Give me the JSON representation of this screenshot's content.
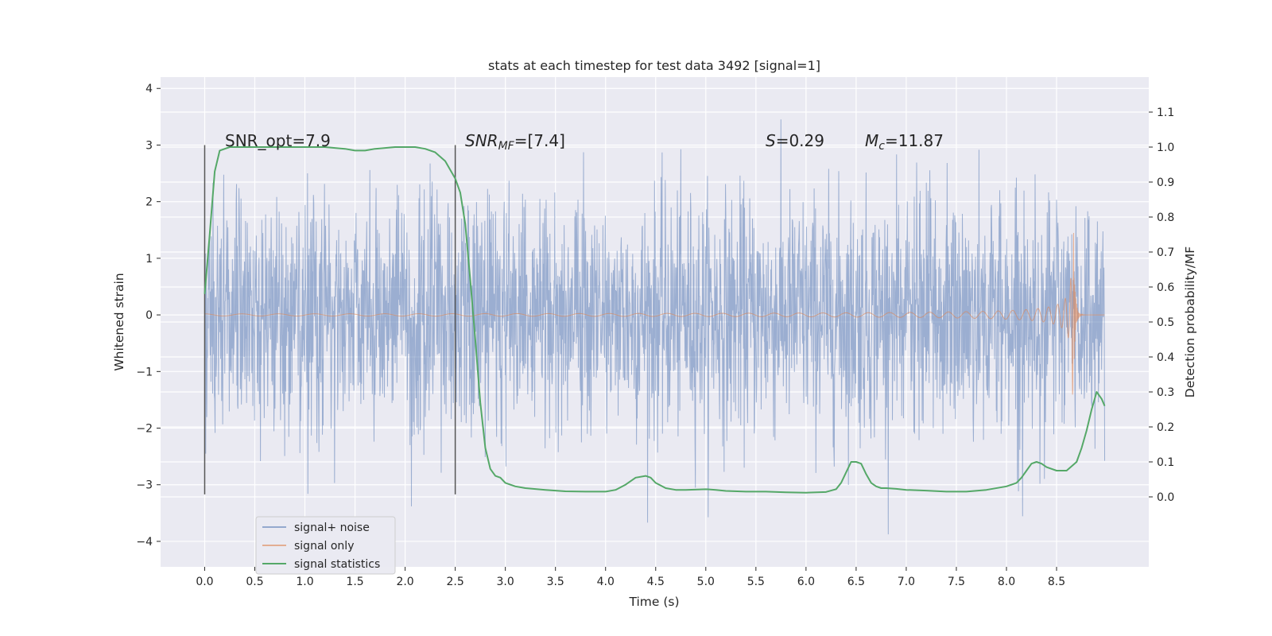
{
  "chart_data": {
    "type": "line",
    "title": "stats at each timestep for test data 3492 [signal=1]",
    "xlabel": "Time (s)",
    "ylabel_left": "Whitened strain",
    "ylabel_right": "Detection probability/MF",
    "xlim": [
      -0.44,
      9.42
    ],
    "ylim_left": [
      -4.45,
      4.2
    ],
    "ylim_right": [
      -0.2,
      1.2
    ],
    "x_ticks": [
      "0.0",
      "0.5",
      "1.0",
      "1.5",
      "2.0",
      "2.5",
      "3.0",
      "3.5",
      "4.0",
      "4.5",
      "5.0",
      "5.5",
      "6.0",
      "6.5",
      "7.0",
      "7.5",
      "8.0",
      "8.5"
    ],
    "y_ticks_left": [
      "4",
      "3",
      "2",
      "1",
      "0",
      "−1",
      "−2",
      "−3",
      "−4"
    ],
    "y_ticks_right": [
      "1.1",
      "1.0",
      "0.9",
      "0.8",
      "0.7",
      "0.6",
      "0.5",
      "0.4",
      "0.3",
      "0.2",
      "0.1",
      "0.0"
    ],
    "grid": true,
    "legend_position": "lower-left",
    "annotations": {
      "snr_opt": "SNR_opt=7.9",
      "snr_mf_prefix": "SNR",
      "snr_mf_sub": "MF",
      "snr_mf_rest": "=[7.4]",
      "s_prefix": "S",
      "s_rest": "=0.29",
      "mc_prefix": "M",
      "mc_sub": "c",
      "mc_rest": "=11.87"
    },
    "vertical_markers": [
      {
        "x": 0.0,
        "y_range": [
          -3.17,
          3.0
        ]
      },
      {
        "x": 2.5,
        "y_range": [
          -3.17,
          3.0
        ]
      }
    ],
    "series": [
      {
        "name": "signal+ noise",
        "color": "#4c72b0",
        "kind": "noise",
        "x_range": [
          0.0,
          8.98
        ],
        "typical_amplitude": 1.7,
        "max": 3.7,
        "min": -4.0
      },
      {
        "name": "signal only",
        "color": "#dd8452",
        "kind": "chirp",
        "x_range": [
          0.0,
          8.98
        ],
        "merger_time": 8.67,
        "peak_amplitude": 1.5
      },
      {
        "name": "signal statistics",
        "color": "#55a868",
        "axis": "right",
        "x": [
          0.0,
          0.05,
          0.1,
          0.15,
          0.25,
          0.4,
          0.6,
          0.8,
          1.0,
          1.2,
          1.4,
          1.5,
          1.55,
          1.6,
          1.7,
          1.9,
          2.1,
          2.2,
          2.3,
          2.4,
          2.5,
          2.55,
          2.6,
          2.65,
          2.7,
          2.75,
          2.8,
          2.85,
          2.9,
          2.95,
          3.0,
          3.1,
          3.2,
          3.4,
          3.6,
          3.8,
          4.0,
          4.1,
          4.2,
          4.3,
          4.4,
          4.45,
          4.5,
          4.6,
          4.7,
          4.8,
          5.0,
          5.1,
          5.2,
          5.4,
          5.6,
          5.8,
          6.0,
          6.2,
          6.3,
          6.35,
          6.4,
          6.45,
          6.5,
          6.55,
          6.6,
          6.65,
          6.7,
          6.75,
          6.8,
          6.9,
          7.0,
          7.2,
          7.4,
          7.6,
          7.8,
          8.0,
          8.1,
          8.15,
          8.2,
          8.25,
          8.3,
          8.35,
          8.4,
          8.5,
          8.6,
          8.7,
          8.75,
          8.8,
          8.85,
          8.9,
          8.95,
          8.98
        ],
        "y": [
          0.58,
          0.75,
          0.93,
          0.99,
          1.0,
          1.0,
          1.0,
          1.0,
          1.0,
          1.0,
          0.995,
          0.99,
          0.99,
          0.99,
          0.995,
          1.0,
          1.0,
          0.995,
          0.985,
          0.96,
          0.91,
          0.87,
          0.78,
          0.62,
          0.45,
          0.27,
          0.14,
          0.08,
          0.06,
          0.055,
          0.04,
          0.03,
          0.025,
          0.02,
          0.016,
          0.015,
          0.015,
          0.02,
          0.035,
          0.055,
          0.06,
          0.055,
          0.04,
          0.025,
          0.02,
          0.02,
          0.022,
          0.02,
          0.017,
          0.015,
          0.015,
          0.013,
          0.012,
          0.014,
          0.022,
          0.04,
          0.07,
          0.1,
          0.1,
          0.095,
          0.065,
          0.04,
          0.03,
          0.025,
          0.025,
          0.023,
          0.02,
          0.018,
          0.015,
          0.015,
          0.02,
          0.03,
          0.04,
          0.055,
          0.075,
          0.095,
          0.1,
          0.095,
          0.085,
          0.075,
          0.075,
          0.1,
          0.14,
          0.19,
          0.25,
          0.3,
          0.28,
          0.26
        ]
      }
    ]
  }
}
